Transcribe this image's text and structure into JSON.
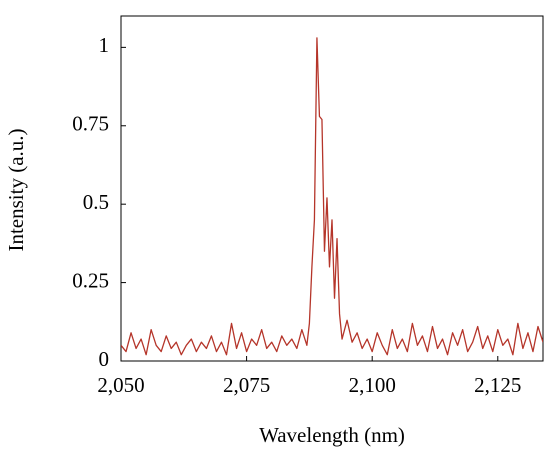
{
  "chart_data": {
    "type": "line",
    "xlabel": "Wavelength (nm)",
    "ylabel": "Intensity (a.u.)",
    "x": [
      2050,
      2051,
      2052,
      2053,
      2054,
      2055,
      2056,
      2057,
      2058,
      2059,
      2060,
      2061,
      2062,
      2063,
      2064,
      2065,
      2066,
      2067,
      2068,
      2069,
      2070,
      2071,
      2072,
      2073,
      2074,
      2075,
      2076,
      2077,
      2078,
      2079,
      2080,
      2081,
      2082,
      2083,
      2084,
      2085,
      2086,
      2087,
      2087.5,
      2088,
      2088.5,
      2089,
      2089.5,
      2090,
      2090.5,
      2091,
      2091.5,
      2092,
      2092.5,
      2093,
      2093.5,
      2094,
      2095,
      2096,
      2097,
      2098,
      2099,
      2100,
      2101,
      2102,
      2103,
      2104,
      2105,
      2106,
      2107,
      2108,
      2109,
      2110,
      2111,
      2112,
      2113,
      2114,
      2115,
      2116,
      2117,
      2118,
      2119,
      2120,
      2121,
      2122,
      2123,
      2124,
      2125,
      2126,
      2127,
      2128,
      2129,
      2130,
      2131,
      2132,
      2133,
      2134
    ],
    "series": [
      {
        "name": "Intensity",
        "color": "#b5352a",
        "values": [
          0.05,
          0.03,
          0.09,
          0.04,
          0.07,
          0.02,
          0.1,
          0.05,
          0.03,
          0.08,
          0.04,
          0.06,
          0.02,
          0.05,
          0.07,
          0.03,
          0.06,
          0.04,
          0.08,
          0.03,
          0.06,
          0.02,
          0.12,
          0.04,
          0.09,
          0.03,
          0.07,
          0.05,
          0.1,
          0.04,
          0.06,
          0.03,
          0.08,
          0.05,
          0.07,
          0.04,
          0.1,
          0.05,
          0.12,
          0.3,
          0.45,
          1.03,
          0.78,
          0.77,
          0.35,
          0.52,
          0.3,
          0.45,
          0.2,
          0.39,
          0.15,
          0.07,
          0.13,
          0.06,
          0.09,
          0.04,
          0.07,
          0.03,
          0.09,
          0.05,
          0.02,
          0.1,
          0.04,
          0.07,
          0.03,
          0.12,
          0.05,
          0.08,
          0.03,
          0.11,
          0.04,
          0.07,
          0.02,
          0.09,
          0.05,
          0.1,
          0.03,
          0.06,
          0.11,
          0.04,
          0.08,
          0.03,
          0.1,
          0.05,
          0.07,
          0.02,
          0.12,
          0.04,
          0.09,
          0.03,
          0.11,
          0.06
        ]
      }
    ],
    "xlim": [
      2050,
      2134
    ],
    "ylim": [
      0,
      1.1
    ],
    "xticks": [
      {
        "value": 2050,
        "label": "2,050"
      },
      {
        "value": 2075,
        "label": "2,075"
      },
      {
        "value": 2100,
        "label": "2,100"
      },
      {
        "value": 2125,
        "label": "2,125"
      }
    ],
    "yticks": [
      0,
      0.25,
      0.5,
      0.75,
      1
    ],
    "grid": false
  }
}
